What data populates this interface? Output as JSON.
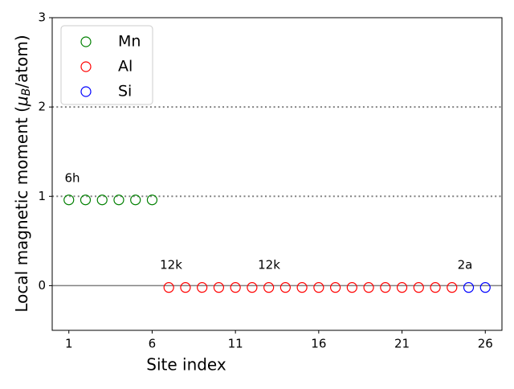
{
  "chart_data": {
    "type": "scatter",
    "xlabel": "Site index",
    "ylabel": [
      "Local magnetic moment (",
      "μ",
      "B",
      "/atom)"
    ],
    "xlim": [
      0,
      27
    ],
    "ylim": [
      -0.5,
      3
    ],
    "xticks": [
      1,
      6,
      11,
      16,
      21,
      26
    ],
    "yticks": [
      0,
      1,
      2,
      3
    ],
    "hlines": [
      {
        "value": 0,
        "style": "solid"
      },
      {
        "value": 1,
        "style": "dotted"
      },
      {
        "value": 2,
        "style": "dotted"
      }
    ],
    "legend": "upper left",
    "annotations": [
      "6h",
      "12k",
      "12k",
      "2a"
    ],
    "series": [
      {
        "name": "Mn",
        "color": "green",
        "x": [
          1,
          2,
          3,
          4,
          5,
          6
        ],
        "values": [
          0.96,
          0.96,
          0.96,
          0.96,
          0.96,
          0.96
        ]
      },
      {
        "name": "Al",
        "color": "red",
        "x": [
          7,
          8,
          9,
          10,
          11,
          12,
          13,
          14,
          15,
          16,
          17,
          18,
          19,
          20,
          21,
          22,
          23,
          24
        ],
        "values": [
          -0.02,
          -0.02,
          -0.02,
          -0.02,
          -0.02,
          -0.02,
          -0.02,
          -0.02,
          -0.02,
          -0.02,
          -0.02,
          -0.02,
          -0.02,
          -0.02,
          -0.02,
          -0.02,
          -0.02,
          -0.02
        ]
      },
      {
        "name": "Si",
        "color": "blue",
        "x": [
          25,
          26
        ],
        "values": [
          -0.02,
          -0.02
        ]
      }
    ]
  }
}
